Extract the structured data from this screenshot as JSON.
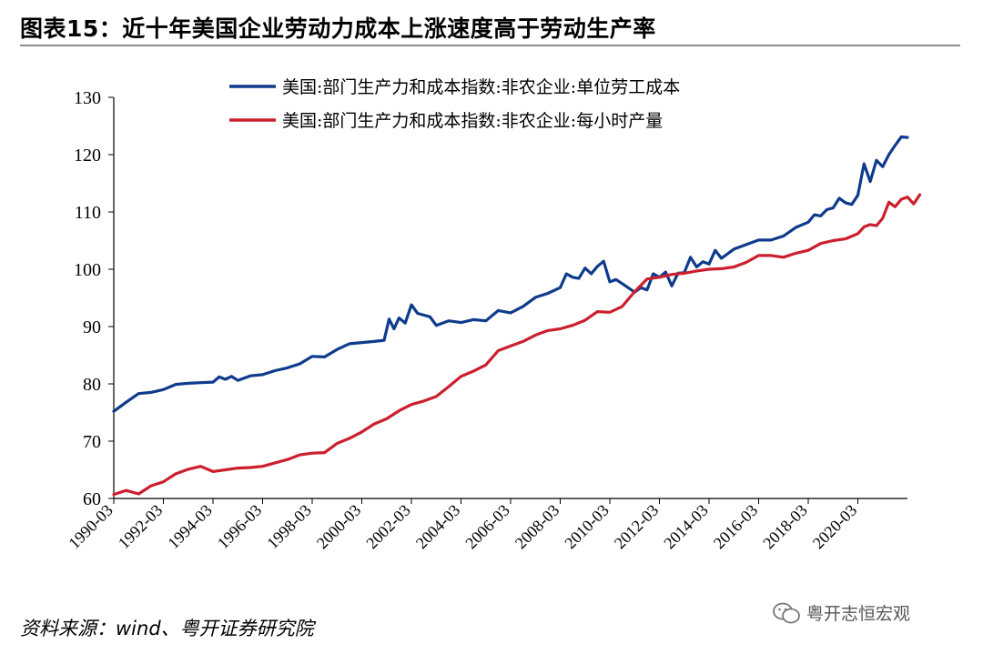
{
  "header": {
    "title": "图表15：近十年美国企业劳动力成本上涨速度高于劳动生产率"
  },
  "footer": {
    "source": "资料来源：wind、粤开证券研究院",
    "watermark": "粤开志恒宏观"
  },
  "chart_data": {
    "type": "line",
    "title": "图表15：近十年美国企业劳动力成本上涨速度高于劳动生产率",
    "xlabel": "",
    "ylabel": "",
    "ylim": [
      60,
      130
    ],
    "yticks": [
      60,
      70,
      80,
      90,
      100,
      110,
      120,
      130
    ],
    "xlim": [
      1990.0,
      2022.0
    ],
    "xticks": [
      "1990-03",
      "1992-03",
      "1994-03",
      "1996-03",
      "1998-03",
      "2000-03",
      "2002-03",
      "2004-03",
      "2006-03",
      "2008-03",
      "2010-03",
      "2012-03",
      "2014-03",
      "2016-03",
      "2018-03",
      "2020-03"
    ],
    "grid": false,
    "legend_position": "top-right",
    "series": [
      {
        "name": "美国:部门生产力和成本指数:非农企业:单位劳工成本",
        "color": "#0f3b8c",
        "points": [
          [
            1990.0,
            75.2
          ],
          [
            1990.5,
            76.8
          ],
          [
            1991.0,
            78.3
          ],
          [
            1991.5,
            78.5
          ],
          [
            1992.0,
            79.0
          ],
          [
            1992.5,
            79.9
          ],
          [
            1993.0,
            80.1
          ],
          [
            1993.5,
            80.2
          ],
          [
            1994.0,
            80.3
          ],
          [
            1994.25,
            81.2
          ],
          [
            1994.5,
            80.8
          ],
          [
            1994.75,
            81.3
          ],
          [
            1995.0,
            80.6
          ],
          [
            1995.5,
            81.4
          ],
          [
            1996.0,
            81.6
          ],
          [
            1996.5,
            82.3
          ],
          [
            1997.0,
            82.8
          ],
          [
            1997.5,
            83.5
          ],
          [
            1998.0,
            84.8
          ],
          [
            1998.5,
            84.7
          ],
          [
            1999.0,
            86.0
          ],
          [
            1999.5,
            87.0
          ],
          [
            2000.0,
            87.2
          ],
          [
            2000.5,
            87.4
          ],
          [
            2000.9,
            87.6
          ],
          [
            2001.1,
            91.3
          ],
          [
            2001.3,
            89.6
          ],
          [
            2001.5,
            91.5
          ],
          [
            2001.75,
            90.6
          ],
          [
            2002.0,
            93.8
          ],
          [
            2002.25,
            92.3
          ],
          [
            2002.75,
            91.7
          ],
          [
            2003.0,
            90.2
          ],
          [
            2003.5,
            91.0
          ],
          [
            2004.0,
            90.7
          ],
          [
            2004.5,
            91.2
          ],
          [
            2005.0,
            91.0
          ],
          [
            2005.5,
            92.8
          ],
          [
            2006.0,
            92.4
          ],
          [
            2006.5,
            93.5
          ],
          [
            2007.0,
            95.1
          ],
          [
            2007.5,
            95.8
          ],
          [
            2008.0,
            96.8
          ],
          [
            2008.25,
            99.2
          ],
          [
            2008.5,
            98.6
          ],
          [
            2008.75,
            98.4
          ],
          [
            2009.0,
            100.2
          ],
          [
            2009.25,
            99.2
          ],
          [
            2009.5,
            100.5
          ],
          [
            2009.75,
            101.4
          ],
          [
            2010.0,
            97.8
          ],
          [
            2010.25,
            98.2
          ],
          [
            2010.5,
            97.5
          ],
          [
            2011.0,
            96.0
          ],
          [
            2011.25,
            96.8
          ],
          [
            2011.5,
            96.4
          ],
          [
            2011.75,
            99.2
          ],
          [
            2012.0,
            98.6
          ],
          [
            2012.25,
            99.5
          ],
          [
            2012.5,
            97.1
          ],
          [
            2012.75,
            99.3
          ],
          [
            2013.0,
            99.4
          ],
          [
            2013.25,
            102.1
          ],
          [
            2013.5,
            100.4
          ],
          [
            2013.75,
            101.3
          ],
          [
            2014.0,
            100.9
          ],
          [
            2014.25,
            103.3
          ],
          [
            2014.5,
            101.9
          ],
          [
            2015.0,
            103.5
          ],
          [
            2015.5,
            104.3
          ],
          [
            2016.0,
            105.1
          ],
          [
            2016.5,
            105.1
          ],
          [
            2017.0,
            105.8
          ],
          [
            2017.5,
            107.3
          ],
          [
            2018.0,
            108.2
          ],
          [
            2018.25,
            109.5
          ],
          [
            2018.5,
            109.3
          ],
          [
            2018.75,
            110.4
          ],
          [
            2019.0,
            110.7
          ],
          [
            2019.25,
            112.4
          ],
          [
            2019.5,
            111.6
          ],
          [
            2019.75,
            111.3
          ],
          [
            2020.0,
            112.9
          ],
          [
            2020.25,
            118.4
          ],
          [
            2020.5,
            115.3
          ],
          [
            2020.75,
            119.0
          ],
          [
            2021.0,
            117.9
          ],
          [
            2021.25,
            120.0
          ],
          [
            2021.5,
            121.6
          ],
          [
            2021.75,
            123.1
          ],
          [
            2022.0,
            123.0
          ]
        ]
      },
      {
        "name": "美国:部门生产力和成本指数:非农企业:每小时产量",
        "color": "#cc1f2e",
        "points": [
          [
            1990.0,
            60.7
          ],
          [
            1990.5,
            61.4
          ],
          [
            1991.0,
            60.8
          ],
          [
            1991.5,
            62.2
          ],
          [
            1992.0,
            62.9
          ],
          [
            1992.5,
            64.3
          ],
          [
            1993.0,
            65.1
          ],
          [
            1993.5,
            65.6
          ],
          [
            1994.0,
            64.7
          ],
          [
            1994.5,
            65.0
          ],
          [
            1995.0,
            65.3
          ],
          [
            1995.5,
            65.4
          ],
          [
            1996.0,
            65.6
          ],
          [
            1996.5,
            66.2
          ],
          [
            1997.0,
            66.8
          ],
          [
            1997.5,
            67.6
          ],
          [
            1998.0,
            67.9
          ],
          [
            1998.5,
            68.0
          ],
          [
            1999.0,
            69.6
          ],
          [
            1999.5,
            70.5
          ],
          [
            2000.0,
            71.6
          ],
          [
            2000.5,
            73.0
          ],
          [
            2001.0,
            73.9
          ],
          [
            2001.5,
            75.3
          ],
          [
            2002.0,
            76.4
          ],
          [
            2002.5,
            77.0
          ],
          [
            2003.0,
            77.8
          ],
          [
            2003.5,
            79.5
          ],
          [
            2004.0,
            81.3
          ],
          [
            2004.5,
            82.2
          ],
          [
            2005.0,
            83.3
          ],
          [
            2005.5,
            85.8
          ],
          [
            2006.0,
            86.6
          ],
          [
            2006.5,
            87.4
          ],
          [
            2007.0,
            88.5
          ],
          [
            2007.5,
            89.3
          ],
          [
            2008.0,
            89.6
          ],
          [
            2008.5,
            90.2
          ],
          [
            2009.0,
            91.1
          ],
          [
            2009.5,
            92.6
          ],
          [
            2010.0,
            92.5
          ],
          [
            2010.5,
            93.5
          ],
          [
            2011.0,
            96.1
          ],
          [
            2011.5,
            98.3
          ],
          [
            2012.0,
            98.6
          ],
          [
            2012.5,
            99.1
          ],
          [
            2013.0,
            99.3
          ],
          [
            2013.5,
            99.7
          ],
          [
            2014.0,
            100.0
          ],
          [
            2014.5,
            100.1
          ],
          [
            2015.0,
            100.4
          ],
          [
            2015.5,
            101.2
          ],
          [
            2016.0,
            102.4
          ],
          [
            2016.5,
            102.4
          ],
          [
            2017.0,
            102.1
          ],
          [
            2017.5,
            102.8
          ],
          [
            2018.0,
            103.3
          ],
          [
            2018.5,
            104.5
          ],
          [
            2019.0,
            105.0
          ],
          [
            2019.5,
            105.3
          ],
          [
            2020.0,
            106.2
          ],
          [
            2020.25,
            107.4
          ],
          [
            2020.5,
            107.8
          ],
          [
            2020.75,
            107.6
          ],
          [
            2021.0,
            108.9
          ],
          [
            2021.25,
            111.7
          ],
          [
            2021.5,
            110.9
          ],
          [
            2021.75,
            112.2
          ],
          [
            2022.0,
            112.6
          ],
          [
            2022.25,
            111.4
          ],
          [
            2022.5,
            113.0
          ]
        ]
      }
    ]
  }
}
